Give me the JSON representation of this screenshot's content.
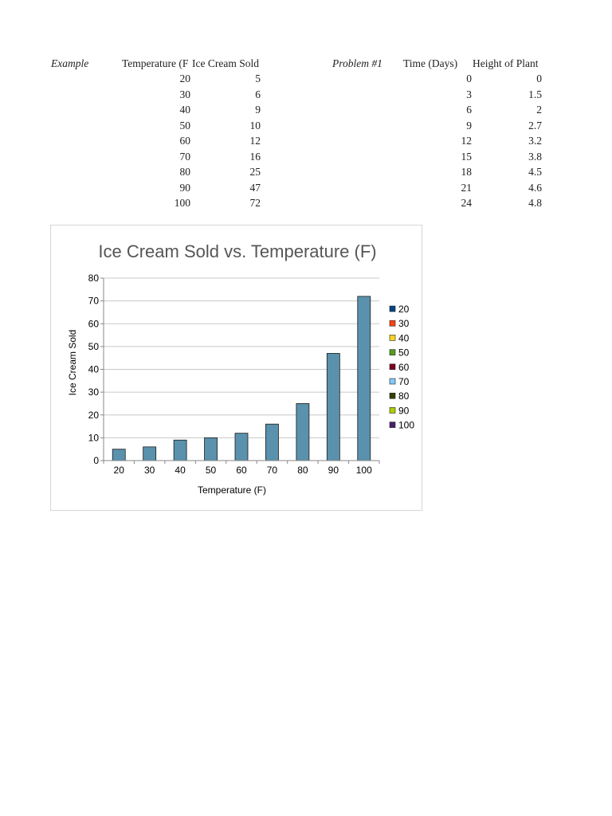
{
  "sheet": {
    "example_label": "Example",
    "example_headers": [
      "Temperature (F",
      "Ice Cream Sold"
    ],
    "example_rows": [
      [
        "20",
        "5"
      ],
      [
        "30",
        "6"
      ],
      [
        "40",
        "9"
      ],
      [
        "50",
        "10"
      ],
      [
        "60",
        "12"
      ],
      [
        "70",
        "16"
      ],
      [
        "80",
        "25"
      ],
      [
        "90",
        "47"
      ],
      [
        "100",
        "72"
      ]
    ],
    "problem_label": "Problem #1",
    "problem_headers": [
      "Time (Days)",
      "Height of Plant"
    ],
    "problem_rows": [
      [
        "0",
        "0"
      ],
      [
        "3",
        "1.5"
      ],
      [
        "6",
        "2"
      ],
      [
        "9",
        "2.7"
      ],
      [
        "12",
        "3.2"
      ],
      [
        "15",
        "3.8"
      ],
      [
        "18",
        "4.5"
      ],
      [
        "21",
        "4.6"
      ],
      [
        "24",
        "4.8"
      ]
    ]
  },
  "chart_data": {
    "type": "bar",
    "title": "Ice Cream Sold vs. Temperature (F)",
    "xlabel": "Temperature (F)",
    "ylabel": "Ice Cream Sold",
    "categories": [
      "20",
      "30",
      "40",
      "50",
      "60",
      "70",
      "80",
      "90",
      "100"
    ],
    "values": [
      5,
      6,
      9,
      10,
      12,
      16,
      25,
      47,
      72
    ],
    "ylim": [
      0,
      80
    ],
    "yticks": [
      0,
      10,
      20,
      30,
      40,
      50,
      60,
      70,
      80
    ],
    "grid": true,
    "bar_color": "#5a91ad",
    "legend_position": "right",
    "legend": [
      {
        "label": "20",
        "color": "#004586"
      },
      {
        "label": "30",
        "color": "#ff420e"
      },
      {
        "label": "40",
        "color": "#ffd320"
      },
      {
        "label": "50",
        "color": "#579d1c"
      },
      {
        "label": "60",
        "color": "#7e0021"
      },
      {
        "label": "70",
        "color": "#83caff"
      },
      {
        "label": "80",
        "color": "#314004"
      },
      {
        "label": "90",
        "color": "#aecf00"
      },
      {
        "label": "100",
        "color": "#4b1f6f"
      }
    ]
  }
}
